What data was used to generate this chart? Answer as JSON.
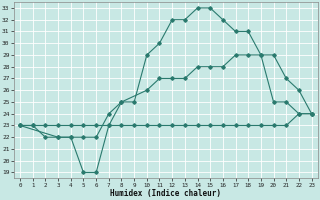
{
  "xlabel": "Humidex (Indice chaleur)",
  "bg_color": "#c8e8e4",
  "line_color": "#2a7a6e",
  "xlim": [
    -0.5,
    23.5
  ],
  "ylim": [
    18.5,
    33.5
  ],
  "yticks": [
    19,
    20,
    21,
    22,
    23,
    24,
    25,
    26,
    27,
    28,
    29,
    30,
    31,
    32,
    33
  ],
  "xticks": [
    0,
    1,
    2,
    3,
    4,
    5,
    6,
    7,
    8,
    9,
    10,
    11,
    12,
    13,
    14,
    15,
    16,
    17,
    18,
    19,
    20,
    21,
    22,
    23
  ],
  "line1_x": [
    0,
    1,
    2,
    3,
    4,
    5,
    6,
    7,
    8,
    9,
    10,
    11,
    12,
    13,
    14,
    15,
    16,
    17,
    18,
    19,
    20,
    21,
    22,
    23
  ],
  "line1_y": [
    23,
    23,
    22,
    22,
    22,
    19,
    19,
    23,
    25,
    25,
    29,
    30,
    32,
    32,
    33,
    33,
    32,
    31,
    31,
    29,
    25,
    25,
    24,
    24
  ],
  "line2_x": [
    0,
    3,
    4,
    5,
    6,
    7,
    8,
    10,
    11,
    12,
    13,
    14,
    15,
    16,
    17,
    18,
    19,
    20,
    21,
    22,
    23
  ],
  "line2_y": [
    23,
    22,
    22,
    22,
    22,
    24,
    25,
    26,
    27,
    27,
    27,
    28,
    28,
    28,
    29,
    29,
    29,
    29,
    27,
    26,
    24
  ],
  "line3_x": [
    0,
    1,
    2,
    3,
    4,
    5,
    6,
    7,
    8,
    9,
    10,
    11,
    12,
    13,
    14,
    15,
    16,
    17,
    18,
    19,
    20,
    21,
    22,
    23
  ],
  "line3_y": [
    23,
    23,
    23,
    23,
    23,
    23,
    23,
    23,
    23,
    23,
    23,
    23,
    23,
    23,
    23,
    23,
    23,
    23,
    23,
    23,
    23,
    23,
    24,
    24
  ]
}
